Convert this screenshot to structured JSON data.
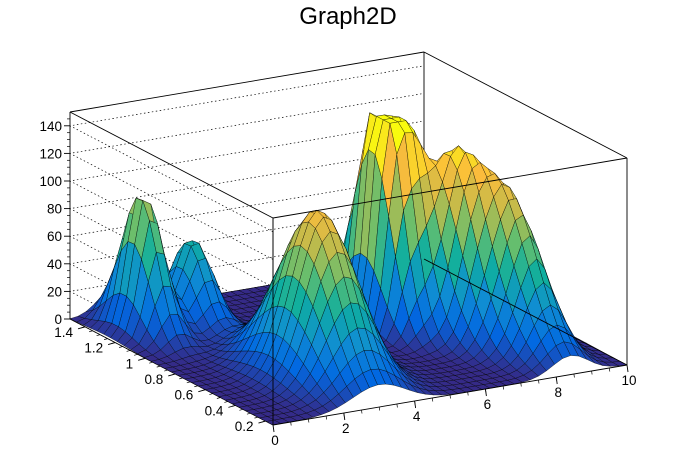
{
  "chart_data": {
    "type": "surface",
    "title": "Graph2D",
    "xlabel": "",
    "ylabel": "",
    "zlabel": "",
    "xlim": [
      0,
      10
    ],
    "ylim": [
      0.15,
      1.5
    ],
    "zlim": [
      0,
      150
    ],
    "x_ticks": [
      "0",
      "2",
      "4",
      "6",
      "8",
      "10"
    ],
    "y_ticks": [
      "0.2",
      "0.4",
      "0.6",
      "0.8",
      "1",
      "1.2",
      "1.4"
    ],
    "z_ticks": [
      "0",
      "20",
      "40",
      "60",
      "80",
      "100",
      "120",
      "140"
    ],
    "grid": true,
    "colormap": [
      "#352a87",
      "#0268e1",
      "#108ed2",
      "#0fae9f",
      "#65be6e",
      "#c1bb4b",
      "#fbbc3c",
      "#f9fb0e"
    ],
    "peaks": [
      {
        "x": 1.0,
        "y": 1.25,
        "z": 102,
        "wx": 0.35,
        "wy": 0.12
      },
      {
        "x": 2.4,
        "y": 1.25,
        "z": 62,
        "wx": 0.4,
        "wy": 0.11
      },
      {
        "x": 3.0,
        "y": 0.55,
        "z": 120,
        "wx": 0.75,
        "wy": 0.2
      },
      {
        "x": 5.6,
        "y": 1.2,
        "z": 25,
        "wx": 0.2,
        "wy": 0.08
      },
      {
        "x": 6.3,
        "y": 0.95,
        "z": 128,
        "wx": 0.28,
        "wy": 0.13
      },
      {
        "x": 6.8,
        "y": 0.9,
        "z": 130,
        "wx": 0.35,
        "wy": 0.12
      },
      {
        "x": 7.6,
        "y": 0.75,
        "z": 112,
        "wx": 0.45,
        "wy": 0.16
      },
      {
        "x": 8.4,
        "y": 0.55,
        "z": 102,
        "wx": 0.5,
        "wy": 0.2
      }
    ]
  }
}
